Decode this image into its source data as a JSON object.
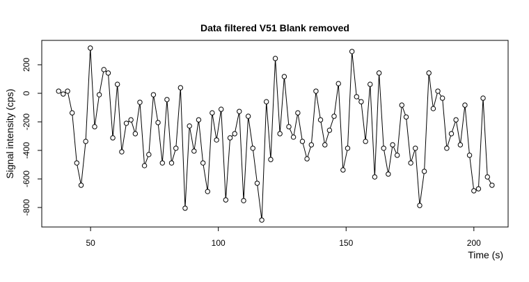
{
  "chart_data": {
    "type": "line",
    "title": "Data filtered V51 Blank removed",
    "xlabel": "Time (s)",
    "ylabel": "Signal intensity (cps)",
    "x": [
      37.5,
      39.3,
      41.0,
      42.8,
      44.6,
      46.3,
      48.1,
      49.9,
      51.6,
      53.4,
      55.2,
      56.9,
      58.7,
      60.5,
      62.2,
      64.0,
      65.8,
      67.5,
      69.3,
      71.1,
      72.8,
      74.6,
      76.4,
      78.1,
      79.9,
      81.7,
      83.4,
      85.2,
      87.0,
      88.7,
      90.5,
      92.3,
      94.0,
      95.8,
      97.6,
      99.3,
      101.1,
      102.9,
      104.6,
      106.4,
      108.2,
      109.9,
      111.7,
      113.5,
      115.2,
      117.0,
      118.8,
      120.5,
      122.3,
      124.1,
      125.8,
      127.6,
      129.4,
      131.1,
      132.9,
      134.7,
      136.4,
      138.2,
      140.0,
      141.7,
      143.5,
      145.3,
      147.0,
      148.8,
      150.6,
      152.3,
      154.1,
      155.9,
      157.6,
      159.4,
      161.2,
      162.9,
      164.7,
      166.5,
      168.2,
      170.0,
      171.8,
      173.5,
      175.3,
      177.1,
      178.8,
      180.6,
      182.4,
      184.1,
      185.9,
      187.7,
      189.4,
      191.2,
      193.0,
      194.7,
      196.5,
      198.3,
      200.0,
      201.8,
      203.6,
      205.3,
      207.1
    ],
    "values": [
      15,
      -5,
      15,
      -137,
      -488,
      -644,
      -337,
      317,
      -234,
      -10,
      166,
      142,
      -312,
      63,
      -410,
      -210,
      -186,
      -283,
      -63,
      -507,
      -429,
      -10,
      -205,
      -488,
      -44,
      -488,
      -385,
      39,
      -805,
      -229,
      -405,
      -186,
      -488,
      -688,
      -137,
      -327,
      -112,
      -747,
      -312,
      -283,
      -127,
      -752,
      -161,
      -385,
      -630,
      -888,
      -59,
      -464,
      244,
      -283,
      117,
      -234,
      -307,
      -137,
      -337,
      -459,
      -361,
      15,
      -186,
      -361,
      -259,
      -161,
      68,
      -537,
      -385,
      293,
      -24,
      -59,
      -337,
      63,
      -586,
      142,
      -385,
      -566,
      -361,
      -434,
      -83,
      -166,
      -488,
      -385,
      -786,
      -547,
      142,
      -107,
      15,
      -34,
      -385,
      -283,
      -186,
      -361,
      -83,
      -434,
      -683,
      -669,
      -34,
      -586,
      -644
    ],
    "color": "#000000",
    "marker": "circle",
    "xlim": [
      30.9,
      213.4
    ],
    "ylim": [
      -936.6,
      370.7
    ],
    "xticks": [
      50,
      100,
      150,
      200
    ],
    "yticks": [
      -800,
      -600,
      -400,
      -200,
      0,
      200
    ]
  }
}
